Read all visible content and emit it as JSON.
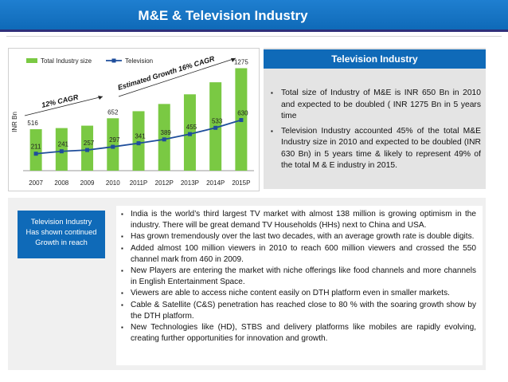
{
  "header": {
    "title": "M&E & Television Industry"
  },
  "chart_data": {
    "type": "bar",
    "categories": [
      "2007",
      "2008",
      "2009",
      "2010",
      "2011P",
      "2012P",
      "2013P",
      "2014P",
      "2015P"
    ],
    "series": [
      {
        "name": "Total Industry size",
        "kind": "bar",
        "values": [
          null,
          null,
          null,
          652,
          null,
          null,
          null,
          null,
          1275
        ],
        "labels": [
          "516",
          "",
          "",
          "652",
          "",
          "",
          "",
          "",
          "1275"
        ]
      },
      {
        "name": "Television",
        "kind": "line",
        "values": [
          211,
          241,
          257,
          297,
          341,
          389,
          455,
          533,
          630
        ]
      }
    ],
    "bar_estimates": [
      516,
      530,
      560,
      652,
      740,
      830,
      950,
      1100,
      1275
    ],
    "ylabel": "INR Bn",
    "ylim": [
      0,
      1300
    ],
    "annotations": [
      "12% CAGR",
      "Estimated  Growth 16% CAGR"
    ],
    "legend_position": "top-left"
  },
  "right_panel": {
    "title": "Television Industry",
    "bullets": [
      "Total size of Industry of M&E is INR 650 Bn in 2010 and expected to be doubled ( INR 1275 Bn in 5 years time",
      "Television Industry accounted 45% of the total M&E Industry size in 2010 and expected to be doubled (INR 630 Bn) in 5 years time & likely to represent 49% of the total M & E industry in 2015."
    ]
  },
  "side_box": {
    "lines": [
      "Television Industry",
      "Has shown continued",
      "Growth in reach"
    ]
  },
  "main_bullets": [
    "India is the world’s third largest TV market with almost 138 million is growing optimism in the industry. There will be great demand TV Households (HHs) next to China and USA.",
    "Has grown tremendously over the last two decades, with an average growth rate is double digits.",
    "Added almost 100 million viewers in 2010 to reach 600 million viewers and crossed the 550 channel mark from 460 in 2009.",
    "New Players are entering the market with niche offerings like food channels and more channels in English Entertainment Space.",
    "Viewers are able to access niche content easily on DTH platform even in smaller markets.",
    "Cable & Satellite (C&S) penetration has reached close to 80 % with the soaring growth show by the DTH platform.",
    "New Technologies like (HD), STBS and delivery platforms like mobiles are rapidly evolving, creating further opportunities for innovation and growth."
  ],
  "colors": {
    "accent": "#0f6ab8",
    "bar": "#7ac943",
    "line": "#1f4e9b"
  },
  "bullet_symbol": "▪"
}
